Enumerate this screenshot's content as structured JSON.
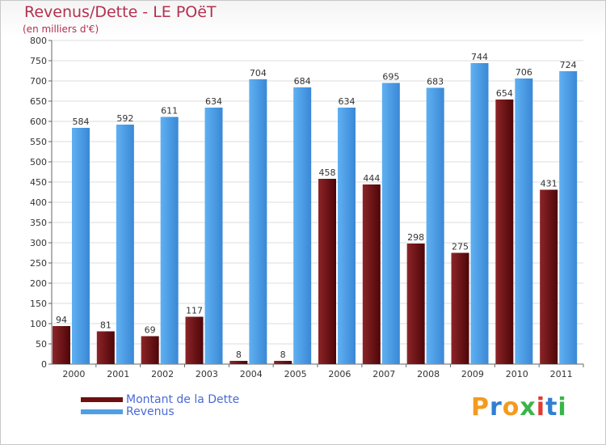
{
  "header": {
    "title": "Revenus/Dette - LE POëT",
    "subtitle": "(en milliers d'€)"
  },
  "chart_data": {
    "type": "bar",
    "title": "Revenus/Dette - LE POëT",
    "ylabel": "(en milliers d'€)",
    "xlabel": "",
    "categories": [
      "2000",
      "2001",
      "2002",
      "2003",
      "2004",
      "2005",
      "2006",
      "2007",
      "2008",
      "2009",
      "2010",
      "2011"
    ],
    "series": [
      {
        "name": "Montant de la Dette",
        "color": "#6e1012",
        "values": [
          94,
          81,
          69,
          117,
          8,
          8,
          458,
          444,
          298,
          275,
          654,
          431
        ]
      },
      {
        "name": "Revenus",
        "color": "#4f9fe6",
        "values": [
          584,
          592,
          611,
          634,
          704,
          684,
          634,
          695,
          683,
          744,
          706,
          724
        ]
      }
    ],
    "ylim": [
      0,
      800
    ],
    "yticks": [
      0,
      50,
      100,
      150,
      200,
      250,
      300,
      350,
      400,
      450,
      500,
      550,
      600,
      650,
      700,
      750,
      800
    ],
    "grid": true,
    "legend": "bottom-left"
  },
  "legend": {
    "items": [
      {
        "label": "Montant de la Dette",
        "color": "#6e1012"
      },
      {
        "label": "Revenus",
        "color": "#4f9fe6"
      }
    ]
  },
  "logo": {
    "letters": [
      {
        "ch": "P",
        "color": "#f59a1e"
      },
      {
        "ch": "r",
        "color": "#2f7fd4"
      },
      {
        "ch": "o",
        "color": "#f59a1e"
      },
      {
        "ch": "x",
        "color": "#3ab54a"
      },
      {
        "ch": "i",
        "color": "#e03b2f"
      },
      {
        "ch": "t",
        "color": "#2f7fd4"
      },
      {
        "ch": "i",
        "color": "#3ab54a"
      }
    ]
  }
}
